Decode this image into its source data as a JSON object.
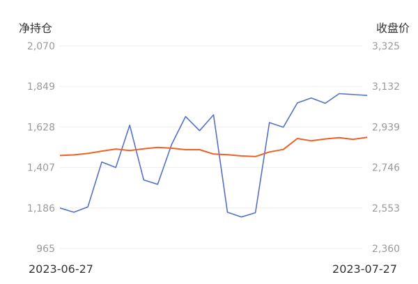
{
  "chart_data": {
    "type": "line",
    "left_axis_title": "净持仓",
    "right_axis_title": "收盘价",
    "left_ticks": [
      "2,070",
      "1,849",
      "1,628",
      "1,407",
      "1,186",
      "965"
    ],
    "right_ticks": [
      "3,325",
      "3,132",
      "2,939",
      "2,746",
      "2,553",
      "2,360"
    ],
    "left_range": [
      965,
      2070
    ],
    "right_range": [
      2360,
      3325
    ],
    "x_start_label": "2023-06-27",
    "x_end_label": "2023-07-27",
    "grid": true,
    "series": [
      {
        "axis": "left",
        "color": "#5470c6",
        "values": [
          1186,
          1163,
          1192,
          1437,
          1407,
          1638,
          1339,
          1315,
          1533,
          1685,
          1608,
          1694,
          1163,
          1137,
          1160,
          1652,
          1627,
          1759,
          1786,
          1757,
          1810,
          1805,
          1800
        ]
      },
      {
        "axis": "right",
        "color": "#ee6025",
        "values": [
          2803,
          2806,
          2813,
          2824,
          2834,
          2827,
          2835,
          2842,
          2838,
          2831,
          2831,
          2810,
          2807,
          2801,
          2798,
          2820,
          2832,
          2884,
          2873,
          2882,
          2888,
          2880,
          2890
        ]
      }
    ]
  }
}
